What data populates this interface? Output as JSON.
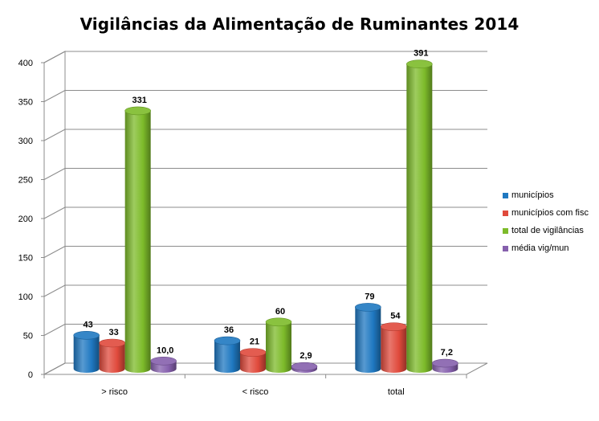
{
  "chart_data": {
    "type": "bar",
    "title": "Vigilâncias da Alimentação de Ruminantes 2014",
    "categories": [
      "> risco",
      "< risco",
      "total"
    ],
    "series": [
      {
        "name": "municípios",
        "values": [
          43,
          36,
          79
        ],
        "labels": [
          "43",
          "36",
          "79"
        ],
        "color": "#1f78c1"
      },
      {
        "name": "municípios com fisc",
        "values": [
          33,
          21,
          54
        ],
        "labels": [
          "33",
          "21",
          "54"
        ],
        "color": "#e04a3c"
      },
      {
        "name": "total de vigilâncias",
        "values": [
          331,
          60,
          391
        ],
        "labels": [
          "331",
          "60",
          "391"
        ],
        "color": "#7dbb2a"
      },
      {
        "name": "média vig/mun",
        "values": [
          10.0,
          2.9,
          7.2
        ],
        "labels": [
          "10,0",
          "2,9",
          "7,2"
        ],
        "color": "#8660ad"
      }
    ],
    "yticks": [
      "0",
      "50",
      "100",
      "150",
      "200",
      "250",
      "300",
      "350",
      "400"
    ],
    "ylim": [
      0,
      400
    ],
    "grid": true,
    "legend_position": "right"
  }
}
